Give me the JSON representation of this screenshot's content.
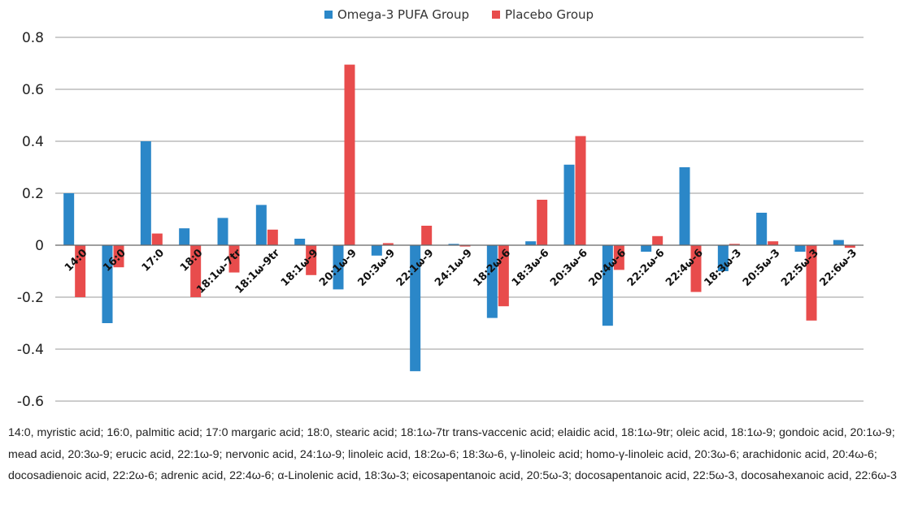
{
  "chart_data": {
    "type": "bar",
    "categories": [
      "14:0",
      "16:0",
      "17:0",
      "18:0",
      "18:1ω-7tr",
      "18:1ω-9tr",
      "18:1ω-9",
      "20:1ω-9",
      "20:3ω-9",
      "22:1ω-9",
      "24:1ω-9",
      "18:2ω-6",
      "18:3ω-6",
      "20:3ω-6",
      "20:4ω-6",
      "22:2ω-6",
      "22:4ω-6",
      "18:3ω-3",
      "20:5ω-3",
      "22:5ω-3",
      "22:6ω-3"
    ],
    "series": [
      {
        "name": "Omega-3 PUFA Group",
        "color": "#2b87c8",
        "values": [
          0.2,
          -0.3,
          0.4,
          0.065,
          0.105,
          0.155,
          0.025,
          -0.17,
          -0.04,
          -0.485,
          0.005,
          -0.28,
          0.015,
          0.31,
          -0.31,
          -0.025,
          0.3,
          -0.1,
          0.125,
          -0.025,
          0.02
        ]
      },
      {
        "name": "Placebo Group",
        "color": "#e84c4c",
        "values": [
          -0.2,
          -0.085,
          0.045,
          -0.2,
          -0.105,
          0.06,
          -0.115,
          0.695,
          0.008,
          0.075,
          -0.005,
          -0.235,
          0.175,
          0.42,
          -0.095,
          0.035,
          -0.18,
          0.005,
          0.015,
          -0.29,
          -0.01
        ]
      }
    ],
    "y_ticks": [
      "0.8",
      "0.6",
      "0.4",
      "0.2",
      "0",
      "-0.2",
      "-0.4",
      "-0.6"
    ],
    "ylim": [
      -0.6,
      0.8
    ],
    "grid": true,
    "legend_position": "top-center"
  },
  "footnote": "14:0, myristic acid; 16:0, palmitic acid; 17:0 margaric acid; 18:0, stearic acid; 18:1ω-7tr trans-vaccenic acid; elaidic acid, 18:1ω-9tr; oleic acid, 18:1ω-9; gondoic acid, 20:1ω-9; mead acid, 20:3ω-9; erucic acid, 22:1ω-9; nervonic acid, 24:1ω-9; linoleic acid, 18:2ω-6; 18:3ω-6, γ-linoleic acid; homo-γ-linoleic acid, 20:3ω-6; arachidonic acid, 20:4ω-6; docosadienoic acid, 22:2ω-6; adrenic acid, 22:4ω-6; α-Linolenic acid, 18:3ω-3; eicosapentanoic acid, 20:5ω-3; docosapentanoic acid, 22:5ω-3, docosahexanoic acid, 22:6ω-3"
}
